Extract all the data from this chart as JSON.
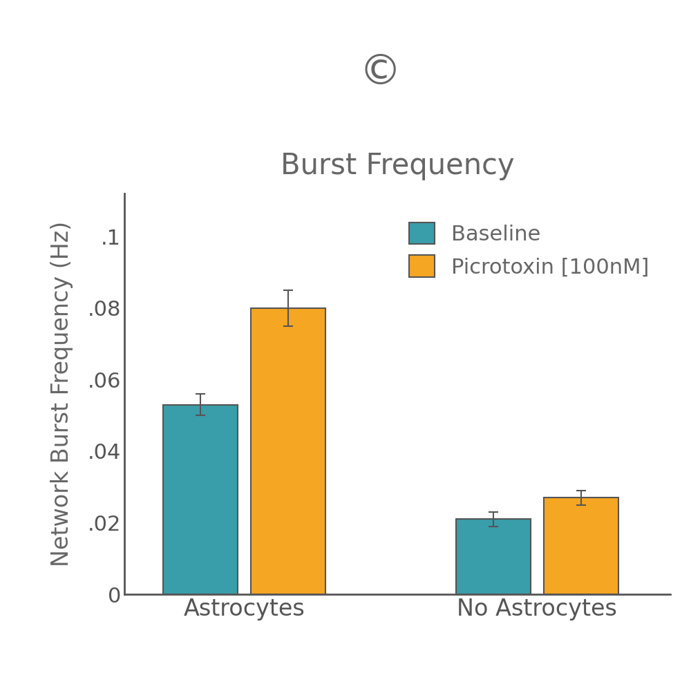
{
  "title": "Burst Frequency",
  "copyright_symbol": "©",
  "ylabel": "Network Burst Frequency (Hz)",
  "groups": [
    "Astrocytes",
    "No Astrocytes"
  ],
  "conditions": [
    "Baseline",
    "Picrotoxin [100nM]"
  ],
  "values": {
    "Astrocytes": [
      0.053,
      0.08
    ],
    "No Astrocytes": [
      0.021,
      0.027
    ]
  },
  "errors": {
    "Astrocytes": [
      0.003,
      0.005
    ],
    "No Astrocytes": [
      0.002,
      0.002
    ]
  },
  "bar_colors": [
    "#3a9daa",
    "#f5a623"
  ],
  "bar_edge_color": "#555555",
  "text_color": "#666666",
  "axis_color": "#555555",
  "ylim": [
    0,
    0.112
  ],
  "yticks": [
    0,
    0.02,
    0.04,
    0.06,
    0.08,
    0.1
  ],
  "ytick_labels": [
    "0",
    ".02",
    ".04",
    ".06",
    ".08",
    ".1"
  ],
  "bar_width": 0.28,
  "group_centers": [
    0.7,
    1.8
  ],
  "bar_gap": 0.05,
  "title_fontsize": 30,
  "label_fontsize": 24,
  "tick_fontsize": 22,
  "legend_fontsize": 22,
  "copyright_fontsize": 44,
  "background_color": "#ffffff"
}
